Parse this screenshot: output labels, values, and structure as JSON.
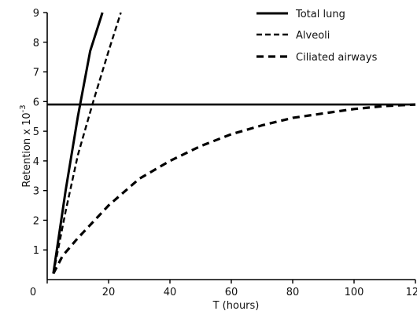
{
  "chart_data": {
    "type": "line",
    "xlabel": "T (hours)",
    "ylabel_text": "Retention x 10",
    "ylabel_exponent": "-3",
    "xlim": [
      0,
      120
    ],
    "ylim": [
      0,
      9
    ],
    "x_ticks": [
      0,
      20,
      40,
      60,
      80,
      100,
      120
    ],
    "y_ticks": [
      1,
      2,
      3,
      4,
      5,
      6,
      7,
      8,
      9
    ],
    "y_tick_labels": [
      "1",
      "2",
      "3",
      "4",
      "5",
      "6",
      "7",
      "8",
      "9"
    ],
    "x_tick_labels": [
      "0",
      "20",
      "40",
      "60",
      "80",
      "100",
      "120"
    ],
    "reference_line": {
      "y": 5.9
    },
    "legend_position": "top-right",
    "series": [
      {
        "name": "Total lung",
        "style": "solid",
        "x": [
          2,
          6,
          10,
          14,
          18
        ],
        "y": [
          0.2,
          3.0,
          5.5,
          7.7,
          9.0
        ]
      },
      {
        "name": "Alveoli",
        "style": "dashed",
        "x": [
          2,
          6,
          10,
          15,
          20,
          24
        ],
        "y": [
          0.2,
          2.3,
          4.2,
          6.0,
          7.7,
          9.0
        ]
      },
      {
        "name": "Ciliated airways",
        "style": "dashed",
        "x": [
          2,
          5,
          10,
          20,
          30,
          40,
          50,
          60,
          70,
          80,
          90,
          100,
          110,
          120
        ],
        "y": [
          0.2,
          0.8,
          1.4,
          2.5,
          3.4,
          4.0,
          4.5,
          4.9,
          5.2,
          5.45,
          5.6,
          5.75,
          5.85,
          5.9
        ]
      }
    ]
  }
}
